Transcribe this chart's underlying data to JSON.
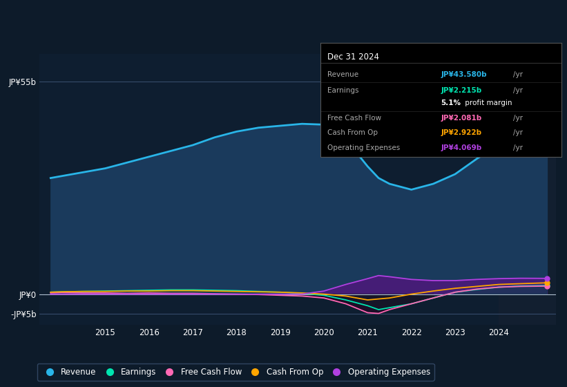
{
  "bg_color": "#0d1b2a",
  "panel_bg_color": "#0e1e30",
  "title": "Dec 31 2024",
  "ylim": [
    -8,
    62
  ],
  "yticks_labels": [
    "JP¥55b",
    "JP¥0",
    "-JP¥5b"
  ],
  "yticks_values": [
    55,
    0,
    -5
  ],
  "xlim": [
    2013.5,
    2025.3
  ],
  "xticks": [
    2015,
    2016,
    2017,
    2018,
    2019,
    2020,
    2021,
    2022,
    2023,
    2024
  ],
  "revenue_color": "#29b5e8",
  "earnings_color": "#00e5b0",
  "fcf_color": "#ff69b4",
  "cashfromop_color": "#ffa500",
  "opex_color": "#b040e0",
  "revenue_fill": "#1a3a5c",
  "opex_fill": "#5a1a8a",
  "legend_entries": [
    {
      "label": "Revenue",
      "color": "#29b5e8"
    },
    {
      "label": "Earnings",
      "color": "#00e5b0"
    },
    {
      "label": "Free Cash Flow",
      "color": "#ff69b4"
    },
    {
      "label": "Cash From Op",
      "color": "#ffa500"
    },
    {
      "label": "Operating Expenses",
      "color": "#b040e0"
    }
  ],
  "revenue": [
    [
      2013.75,
      30.0
    ],
    [
      2014.0,
      30.5
    ],
    [
      2014.5,
      31.5
    ],
    [
      2015.0,
      32.5
    ],
    [
      2015.5,
      34.0
    ],
    [
      2016.0,
      35.5
    ],
    [
      2016.5,
      37.0
    ],
    [
      2017.0,
      38.5
    ],
    [
      2017.5,
      40.5
    ],
    [
      2018.0,
      42.0
    ],
    [
      2018.5,
      43.0
    ],
    [
      2019.0,
      43.5
    ],
    [
      2019.5,
      44.0
    ],
    [
      2020.0,
      43.8
    ],
    [
      2020.25,
      43.0
    ],
    [
      2020.5,
      40.0
    ],
    [
      2021.0,
      33.0
    ],
    [
      2021.25,
      30.0
    ],
    [
      2021.5,
      28.5
    ],
    [
      2022.0,
      27.0
    ],
    [
      2022.5,
      28.5
    ],
    [
      2023.0,
      31.0
    ],
    [
      2023.5,
      35.0
    ],
    [
      2024.0,
      38.5
    ],
    [
      2024.5,
      41.0
    ],
    [
      2025.1,
      43.58
    ]
  ],
  "earnings": [
    [
      2013.75,
      0.5
    ],
    [
      2014.0,
      0.6
    ],
    [
      2014.5,
      0.7
    ],
    [
      2015.0,
      0.8
    ],
    [
      2015.5,
      0.9
    ],
    [
      2016.0,
      1.0
    ],
    [
      2016.5,
      1.1
    ],
    [
      2017.0,
      1.1
    ],
    [
      2017.5,
      1.0
    ],
    [
      2018.0,
      0.9
    ],
    [
      2018.5,
      0.7
    ],
    [
      2019.0,
      0.5
    ],
    [
      2019.5,
      0.2
    ],
    [
      2020.0,
      -0.3
    ],
    [
      2020.5,
      -1.5
    ],
    [
      2021.0,
      -3.0
    ],
    [
      2021.25,
      -4.0
    ],
    [
      2021.5,
      -3.5
    ],
    [
      2022.0,
      -2.5
    ],
    [
      2022.5,
      -1.0
    ],
    [
      2023.0,
      0.5
    ],
    [
      2023.5,
      1.2
    ],
    [
      2024.0,
      1.8
    ],
    [
      2024.5,
      2.1
    ],
    [
      2025.1,
      2.215
    ]
  ],
  "fcf": [
    [
      2013.75,
      0.3
    ],
    [
      2014.0,
      0.4
    ],
    [
      2014.5,
      0.3
    ],
    [
      2015.0,
      0.3
    ],
    [
      2015.5,
      0.2
    ],
    [
      2016.0,
      0.3
    ],
    [
      2016.5,
      0.2
    ],
    [
      2017.0,
      0.2
    ],
    [
      2017.5,
      0.1
    ],
    [
      2018.0,
      0.0
    ],
    [
      2018.5,
      -0.1
    ],
    [
      2019.0,
      -0.3
    ],
    [
      2019.5,
      -0.5
    ],
    [
      2020.0,
      -1.0
    ],
    [
      2020.5,
      -2.5
    ],
    [
      2021.0,
      -4.8
    ],
    [
      2021.25,
      -5.0
    ],
    [
      2021.5,
      -4.0
    ],
    [
      2022.0,
      -2.5
    ],
    [
      2022.5,
      -1.0
    ],
    [
      2023.0,
      0.5
    ],
    [
      2023.5,
      1.3
    ],
    [
      2024.0,
      1.8
    ],
    [
      2024.5,
      2.0
    ],
    [
      2025.1,
      2.081
    ]
  ],
  "cashfromop": [
    [
      2013.75,
      0.5
    ],
    [
      2014.0,
      0.6
    ],
    [
      2014.5,
      0.7
    ],
    [
      2015.0,
      0.7
    ],
    [
      2015.5,
      0.8
    ],
    [
      2016.0,
      0.8
    ],
    [
      2016.5,
      0.9
    ],
    [
      2017.0,
      0.9
    ],
    [
      2017.5,
      0.8
    ],
    [
      2018.0,
      0.7
    ],
    [
      2018.5,
      0.6
    ],
    [
      2019.0,
      0.5
    ],
    [
      2019.5,
      0.3
    ],
    [
      2020.0,
      0.0
    ],
    [
      2020.5,
      -0.5
    ],
    [
      2021.0,
      -1.5
    ],
    [
      2021.5,
      -1.0
    ],
    [
      2022.0,
      0.0
    ],
    [
      2022.5,
      0.8
    ],
    [
      2023.0,
      1.5
    ],
    [
      2023.5,
      2.0
    ],
    [
      2024.0,
      2.5
    ],
    [
      2024.5,
      2.7
    ],
    [
      2025.1,
      2.922
    ]
  ],
  "opex": [
    [
      2013.75,
      0.0
    ],
    [
      2014.0,
      0.0
    ],
    [
      2014.5,
      0.0
    ],
    [
      2015.0,
      0.0
    ],
    [
      2015.5,
      0.0
    ],
    [
      2016.0,
      0.0
    ],
    [
      2016.5,
      0.0
    ],
    [
      2017.0,
      0.0
    ],
    [
      2017.5,
      0.0
    ],
    [
      2018.0,
      0.0
    ],
    [
      2018.5,
      0.0
    ],
    [
      2019.0,
      0.0
    ],
    [
      2019.5,
      0.0
    ],
    [
      2020.0,
      0.8
    ],
    [
      2020.5,
      2.5
    ],
    [
      2021.0,
      4.0
    ],
    [
      2021.25,
      4.8
    ],
    [
      2021.5,
      4.5
    ],
    [
      2022.0,
      3.8
    ],
    [
      2022.5,
      3.5
    ],
    [
      2023.0,
      3.5
    ],
    [
      2023.5,
      3.8
    ],
    [
      2024.0,
      4.0
    ],
    [
      2024.5,
      4.1
    ],
    [
      2025.1,
      4.069
    ]
  ]
}
